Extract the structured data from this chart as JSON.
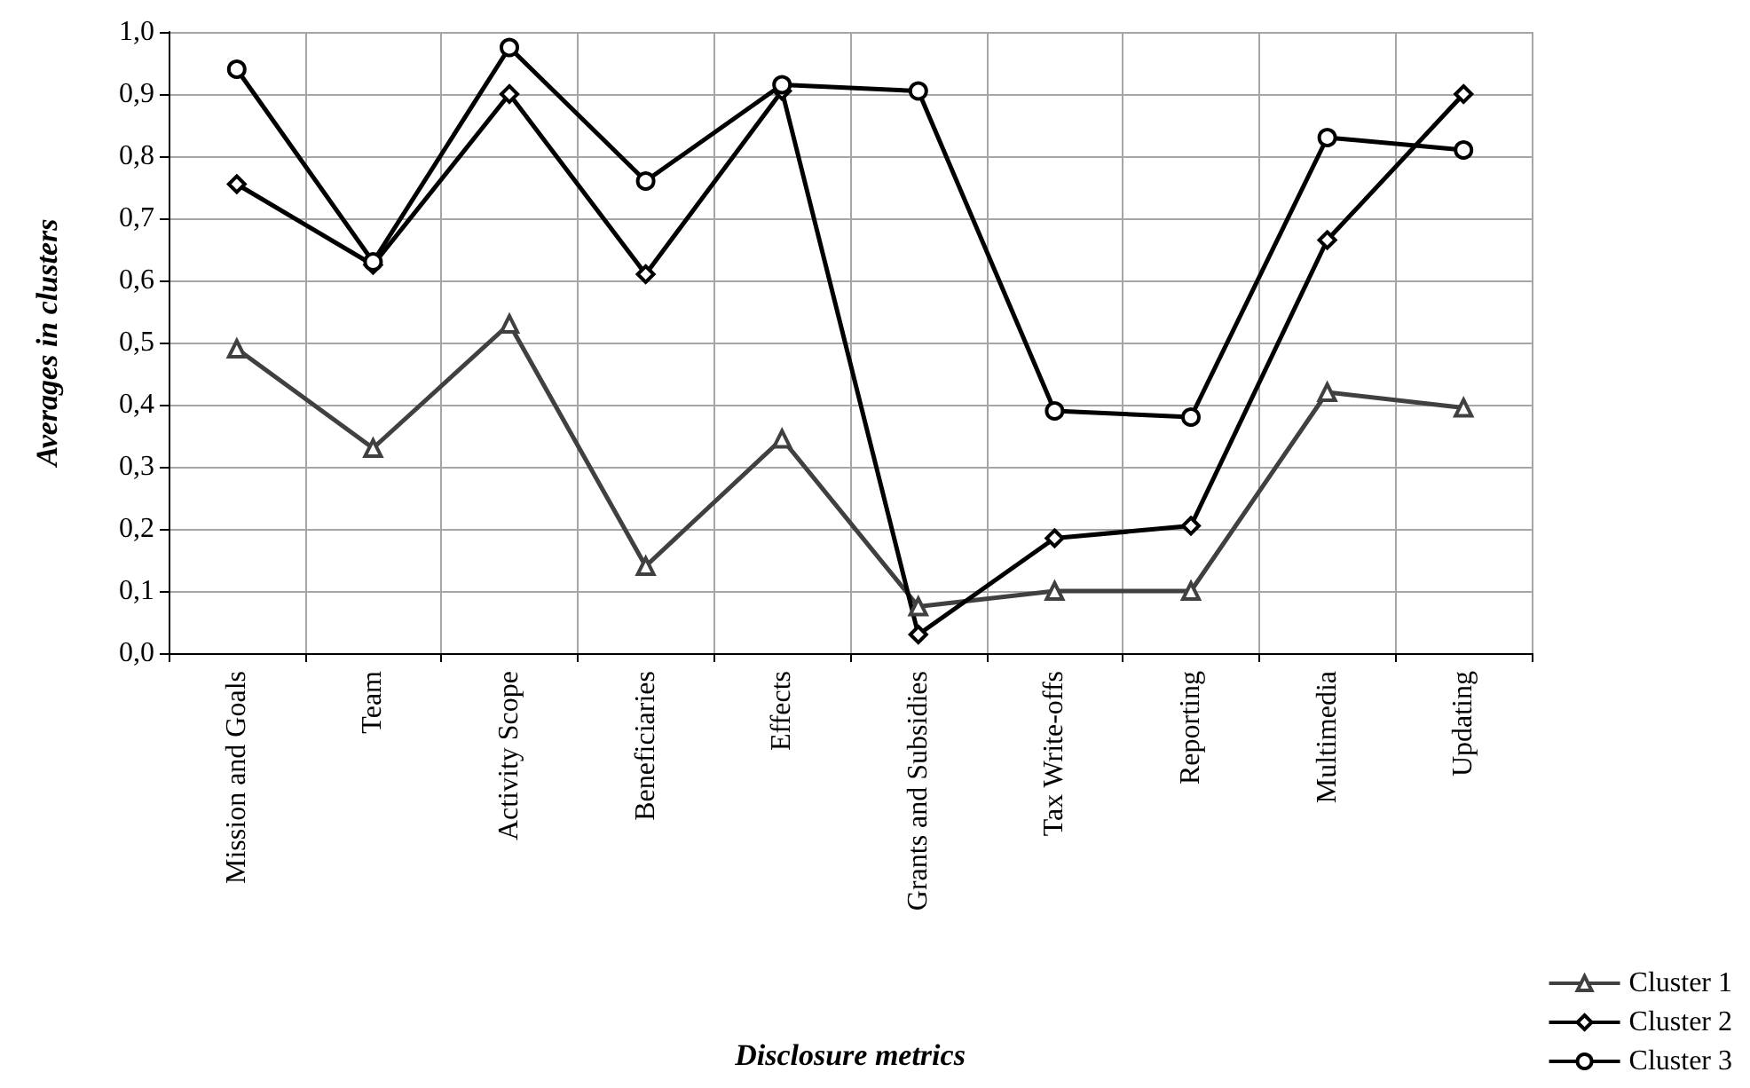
{
  "chart_data": {
    "type": "line",
    "xlabel": "Disclosure metrics",
    "ylabel": "Averages in clusters",
    "categories": [
      "Mission and Goals",
      "Team",
      "Activity Scope",
      "Beneficiaries",
      "Effects",
      "Grants and Subsidies",
      "Tax Write-offs",
      "Reporting",
      "Multimedia",
      "Updating"
    ],
    "series": [
      {
        "name": "Cluster 1",
        "color": "#404040",
        "marker": "triangle",
        "values": [
          0.49,
          0.33,
          0.53,
          0.14,
          0.345,
          0.075,
          0.1,
          0.1,
          0.42,
          0.395
        ]
      },
      {
        "name": "Cluster 2",
        "color": "#000000",
        "marker": "diamond",
        "values": [
          0.755,
          0.625,
          0.9,
          0.61,
          0.905,
          0.03,
          0.185,
          0.205,
          0.665,
          0.9
        ]
      },
      {
        "name": "Cluster 3",
        "color": "#000000",
        "marker": "circle",
        "values": [
          0.94,
          0.63,
          0.975,
          0.76,
          0.915,
          0.905,
          0.39,
          0.38,
          0.83,
          0.81
        ]
      }
    ],
    "ylim": [
      0,
      1
    ],
    "yticks": [
      {
        "value": 0,
        "label": "0,0"
      },
      {
        "value": 0.1,
        "label": "0,1"
      },
      {
        "value": 0.2,
        "label": "0,2"
      },
      {
        "value": 0.3,
        "label": "0,3"
      },
      {
        "value": 0.4,
        "label": "0,4"
      },
      {
        "value": 0.5,
        "label": "0,5"
      },
      {
        "value": 0.6,
        "label": "0,6"
      },
      {
        "value": 0.7,
        "label": "0,7"
      },
      {
        "value": 0.8,
        "label": "0,8"
      },
      {
        "value": 0.9,
        "label": "0,9"
      },
      {
        "value": 1,
        "label": "1,0"
      }
    ],
    "grid": true,
    "legend": "bottom right",
    "line_style": "solid"
  }
}
